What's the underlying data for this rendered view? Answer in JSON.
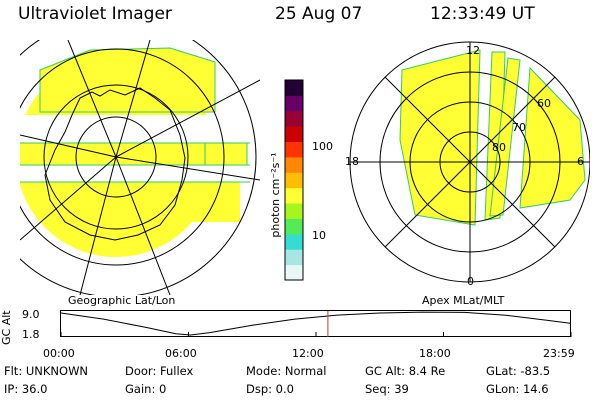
{
  "header": {
    "title": "Ultraviolet Imager",
    "date": "25 Aug 07",
    "time": "12:33:49 UT"
  },
  "colorbar": {
    "label": "photon cm⁻²s⁻¹",
    "ticks": [
      {
        "value": 100,
        "label": "100"
      },
      {
        "value": 10,
        "label": "10"
      }
    ],
    "colors": [
      "#e9f7f7",
      "#a8e6e3",
      "#35dcd0",
      "#53ec56",
      "#a6f51e",
      "#ffff33",
      "#ffbe00",
      "#ff8800",
      "#ff3300",
      "#cc0000",
      "#990033",
      "#660066",
      "#220033"
    ]
  },
  "left_map": {
    "caption": "Geographic Lat/Lon",
    "fill_color": "#ffff33"
  },
  "right_map": {
    "caption": "Apex MLat/MLT",
    "fill_color": "#ffff33",
    "labels": {
      "mlt_top": "12",
      "mlt_left": "18",
      "mlt_right": "6",
      "mlt_bottom": "0",
      "lat_60": "60",
      "lat_70": "70",
      "lat_80": "80"
    }
  },
  "altitude_plot": {
    "ylabel": "GC Alt",
    "y_ticks": [
      "9.0",
      "1.8"
    ],
    "x_ticks": [
      "00:00",
      "06:00",
      "12:00",
      "18:00",
      "23:59"
    ],
    "marker_time_hours": 12.56,
    "x_range_hours": [
      0,
      24
    ],
    "y_range_re": [
      1.8,
      9.0
    ],
    "curve": [
      {
        "t": 0,
        "alt": 9.0
      },
      {
        "t": 2,
        "alt": 7.0
      },
      {
        "t": 4,
        "alt": 4.3
      },
      {
        "t": 5.4,
        "alt": 2.2
      },
      {
        "t": 6.1,
        "alt": 1.8
      },
      {
        "t": 7,
        "alt": 2.6
      },
      {
        "t": 9,
        "alt": 5.0
      },
      {
        "t": 11,
        "alt": 7.0
      },
      {
        "t": 13,
        "alt": 8.3
      },
      {
        "t": 15,
        "alt": 9.0
      },
      {
        "t": 17,
        "alt": 9.3
      },
      {
        "t": 19,
        "alt": 9.2
      },
      {
        "t": 21,
        "alt": 8.2
      },
      {
        "t": 23,
        "alt": 6.5
      },
      {
        "t": 24,
        "alt": 5.6
      }
    ]
  },
  "info": {
    "flt": "Flt: UNKNOWN",
    "ip": "IP: 36.0",
    "door": "Door: Fullex",
    "gain": "Gain:  0",
    "mode": "Mode: Normal",
    "dsp": "Dsp:       0.0",
    "gc_alt": "GC Alt: 8.4 Re",
    "seq": "Seq: 39",
    "glat": "GLat:  -83.5",
    "glon": "GLon:   14.6"
  }
}
